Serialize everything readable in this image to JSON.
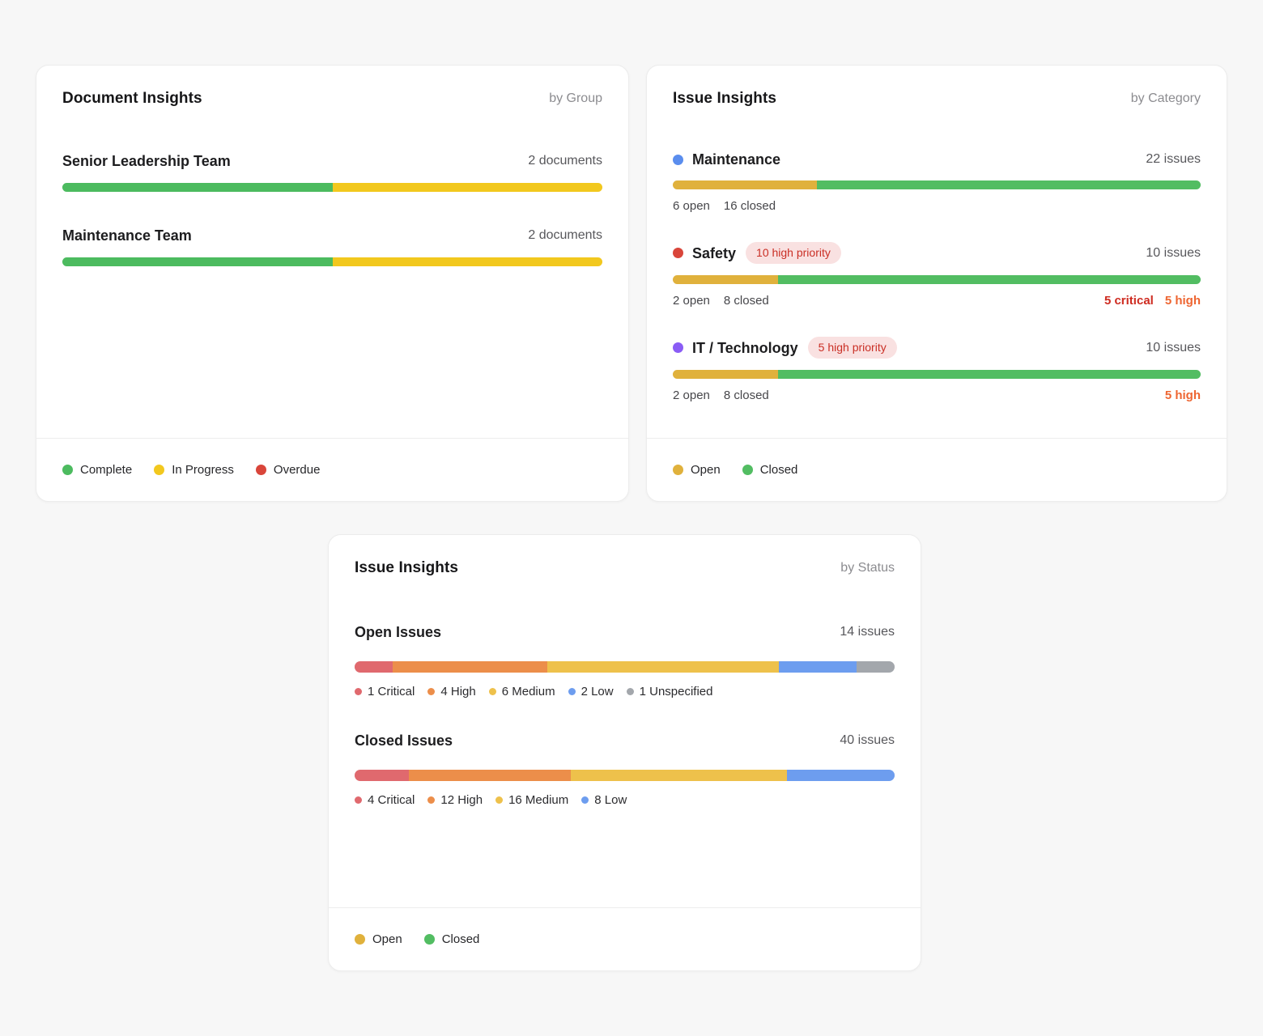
{
  "chart_data": [
    {
      "type": "bar",
      "title": "Document Insights by Group",
      "orientation": "horizontal-stacked-100pct",
      "categories": [
        "Senior Leadership Team",
        "Maintenance Team"
      ],
      "series": [
        {
          "name": "Complete",
          "values": [
            1,
            1
          ],
          "color": "#4cbb5f"
        },
        {
          "name": "In Progress",
          "values": [
            1,
            1
          ],
          "color": "#f2c81e"
        },
        {
          "name": "Overdue",
          "values": [
            0,
            0
          ],
          "color": "#d9453a"
        }
      ],
      "totals": [
        "2 documents",
        "2 documents"
      ],
      "legend_position": "bottom"
    },
    {
      "type": "bar",
      "title": "Issue Insights by Category",
      "orientation": "horizontal-stacked-100pct",
      "categories": [
        "Maintenance",
        "Safety",
        "IT / Technology"
      ],
      "series": [
        {
          "name": "Open",
          "values": [
            6,
            2,
            2
          ],
          "color": "#e0b13c"
        },
        {
          "name": "Closed",
          "values": [
            16,
            8,
            8
          ],
          "color": "#52bd62"
        }
      ],
      "totals": [
        "22 issues",
        "10 issues",
        "10 issues"
      ],
      "badges": [
        null,
        "10 high priority",
        "5 high priority"
      ],
      "annotations": [
        null,
        "5 critical, 5 high",
        "5 high"
      ],
      "legend_position": "bottom"
    },
    {
      "type": "bar",
      "title": "Issue Insights by Status",
      "orientation": "horizontal-stacked-100pct",
      "categories": [
        "Open Issues",
        "Closed Issues"
      ],
      "series": [
        {
          "name": "Critical",
          "values": [
            1,
            4
          ],
          "color": "#e0696e"
        },
        {
          "name": "High",
          "values": [
            4,
            12
          ],
          "color": "#ec8e4a"
        },
        {
          "name": "Medium",
          "values": [
            6,
            16
          ],
          "color": "#eec14b"
        },
        {
          "name": "Low",
          "values": [
            2,
            8
          ],
          "color": "#6d9def"
        },
        {
          "name": "Unspecified",
          "values": [
            1,
            0
          ],
          "color": "#a3a7ac"
        }
      ],
      "totals": [
        "14 issues",
        "40 issues"
      ],
      "legend_position": "bottom"
    }
  ],
  "cards": {
    "documents": {
      "title": "Document Insights",
      "subtitle": "by Group",
      "rows": [
        {
          "label": "Senior Leadership Team",
          "count": "2 documents",
          "segments": [
            {
              "name": "complete",
              "color": "#4cbb5f",
              "width": "50%"
            },
            {
              "name": "in-progress",
              "color": "#f2c81e",
              "width": "50%"
            }
          ]
        },
        {
          "label": "Maintenance Team",
          "count": "2 documents",
          "segments": [
            {
              "name": "complete",
              "color": "#4cbb5f",
              "width": "50%"
            },
            {
              "name": "in-progress",
              "color": "#f2c81e",
              "width": "50%"
            }
          ]
        }
      ],
      "legend": [
        {
          "label": "Complete",
          "color": "#4cbb5f"
        },
        {
          "label": "In Progress",
          "color": "#f2c81e"
        },
        {
          "label": "Overdue",
          "color": "#d9453a"
        }
      ]
    },
    "by_category": {
      "title": "Issue Insights",
      "subtitle": "by Category",
      "rows": [
        {
          "dot_color": "#5a8dee",
          "label": "Maintenance",
          "count": "22 issues",
          "segments": [
            {
              "name": "open",
              "color": "#e0b13c",
              "width": "27.3%"
            },
            {
              "name": "closed",
              "color": "#52bd62",
              "width": "72.7%"
            }
          ],
          "stats_left": [
            {
              "text": "6 open"
            },
            {
              "text": "16 closed"
            }
          ],
          "stats_right": []
        },
        {
          "dot_color": "#d9453a",
          "label": "Safety",
          "badge": "10 high priority",
          "count": "10 issues",
          "segments": [
            {
              "name": "open",
              "color": "#e0b13c",
              "width": "20%"
            },
            {
              "name": "closed",
              "color": "#52bd62",
              "width": "80%"
            }
          ],
          "stats_left": [
            {
              "text": "2 open"
            },
            {
              "text": "8 closed"
            }
          ],
          "stats_right": [
            {
              "text": "5 critical",
              "color": "#ce2b20"
            },
            {
              "text": "5 high",
              "color": "#ee6531"
            }
          ]
        },
        {
          "dot_color": "#8a5cf5",
          "label": "IT / Technology",
          "badge": "5 high priority",
          "count": "10 issues",
          "segments": [
            {
              "name": "open",
              "color": "#e0b13c",
              "width": "20%"
            },
            {
              "name": "closed",
              "color": "#52bd62",
              "width": "80%"
            }
          ],
          "stats_left": [
            {
              "text": "2 open"
            },
            {
              "text": "8 closed"
            }
          ],
          "stats_right": [
            {
              "text": "5 high",
              "color": "#ee6531"
            }
          ]
        }
      ],
      "legend": [
        {
          "label": "Open",
          "color": "#e0b13c"
        },
        {
          "label": "Closed",
          "color": "#52bd62"
        }
      ]
    },
    "by_status": {
      "title": "Issue Insights",
      "subtitle": "by Status",
      "sections": [
        {
          "label": "Open Issues",
          "count": "14 issues",
          "segments": [
            {
              "label": "1 Critical",
              "color": "#e0696e",
              "width": "7.1%"
            },
            {
              "label": "4 High",
              "color": "#ec8e4a",
              "width": "28.6%"
            },
            {
              "label": "6 Medium",
              "color": "#eec14b",
              "width": "42.9%"
            },
            {
              "label": "2 Low",
              "color": "#6d9def",
              "width": "14.3%"
            },
            {
              "label": "1 Unspecified",
              "color": "#a3a7ac",
              "width": "7.1%"
            }
          ]
        },
        {
          "label": "Closed Issues",
          "count": "40 issues",
          "segments": [
            {
              "label": "4 Critical",
              "color": "#e0696e",
              "width": "10%"
            },
            {
              "label": "12 High",
              "color": "#ec8e4a",
              "width": "30%"
            },
            {
              "label": "16 Medium",
              "color": "#eec14b",
              "width": "40%"
            },
            {
              "label": "8 Low",
              "color": "#6d9def",
              "width": "20%"
            }
          ]
        }
      ],
      "legend": [
        {
          "label": "Open",
          "color": "#e0b13c"
        },
        {
          "label": "Closed",
          "color": "#52bd62"
        }
      ]
    }
  }
}
